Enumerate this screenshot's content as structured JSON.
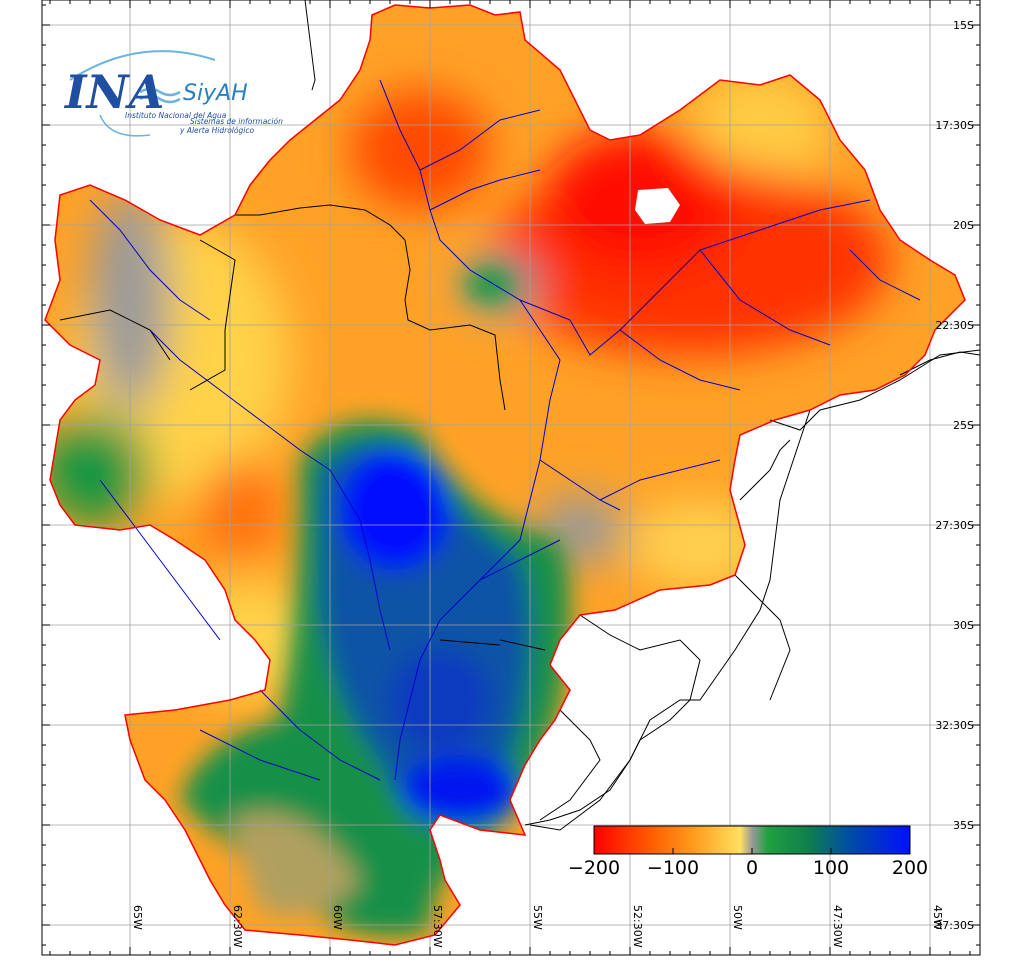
{
  "logo": {
    "ina": "INA",
    "siyah": "SiyAH",
    "institute": "Instituto Nacional del Agua",
    "line1": "Sistemas de información",
    "line2": "y Alerta Hidrológico"
  },
  "lat_labels": [
    "15S",
    "17:30S",
    "20S",
    "22:30S",
    "25S",
    "27:30S",
    "30S",
    "32:30S",
    "35S",
    "37:30S"
  ],
  "lon_labels": [
    "65W",
    "62:30W",
    "60W",
    "57:30W",
    "55W",
    "52:30W",
    "50W",
    "47:30W",
    "45W"
  ],
  "colorbar": {
    "ticks": [
      "−200",
      "−100",
      "0",
      "100",
      "200"
    ],
    "stops": [
      {
        "value": -200,
        "color": "#ff0000"
      },
      {
        "value": -130,
        "color": "#ff5a00"
      },
      {
        "value": -70,
        "color": "#ffa020"
      },
      {
        "value": -15,
        "color": "#ffe060"
      },
      {
        "value": 0,
        "color": "#9a9a9a"
      },
      {
        "value": 20,
        "color": "#20a040"
      },
      {
        "value": 70,
        "color": "#10804c"
      },
      {
        "value": 120,
        "color": "#0050a0"
      },
      {
        "value": 200,
        "color": "#0010ff"
      }
    ]
  },
  "colors": {
    "boundary": "#ff0000",
    "rivers": "#0000cc",
    "borders": "#000000",
    "grid": "#a0a0a0"
  }
}
